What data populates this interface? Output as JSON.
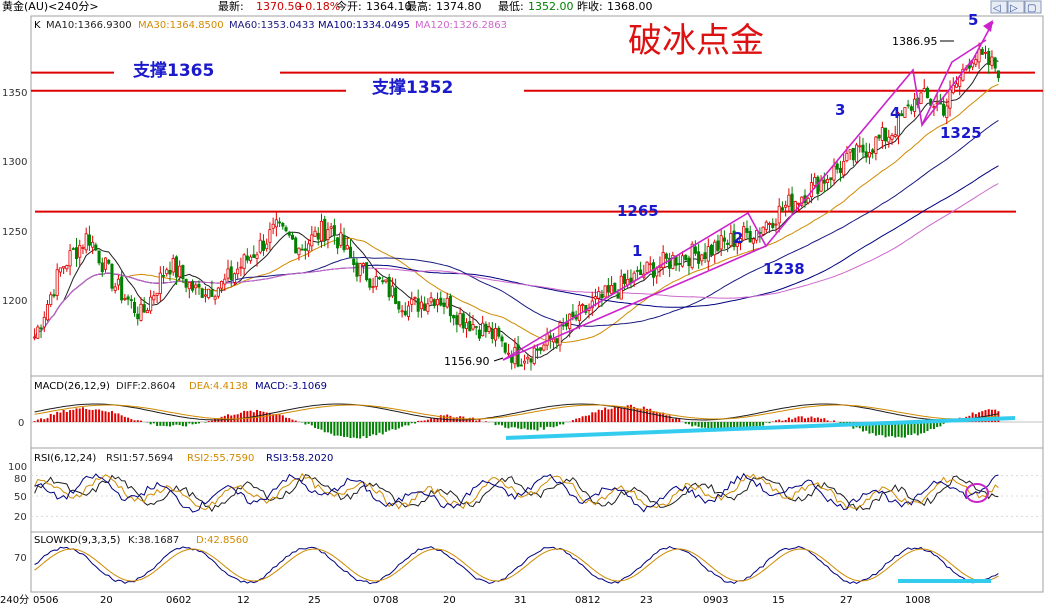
{
  "header": {
    "symbol": "黄金(AU)<240分>",
    "latest_label": "最新:",
    "latest": "1370.50",
    "change": "+0.18%",
    "open_label": "今开:",
    "open": "1364.10",
    "high_label": "最高:",
    "high": "1374.80",
    "low_label": "最低:",
    "low": "1352.00",
    "prev_label": "昨收:",
    "prev": "1368.00"
  },
  "main_legend": {
    "prefix": "K",
    "ma10": "MA10:1366.9300",
    "ma30": "MA30:1364.8500",
    "ma60": "MA60:1353.0433",
    "ma100": "MA100:1334.0495",
    "ma120": "MA120:1326.2863"
  },
  "watermark": "破冰点金",
  "annotations": {
    "support1365": "支撑1365",
    "support1352": "支撑1352",
    "l1265": "1265",
    "l1238": "1238",
    "l1325": "1325",
    "high_mark": "1386.95",
    "low_mark": "1156.90",
    "w1": "1",
    "w2": "2",
    "w3": "3",
    "w4": "4",
    "w5": "5"
  },
  "macd_legend": {
    "name": "MACD(26,12,9)",
    "diff": "DIFF:2.8604",
    "dea": "DEA:4.4138",
    "macd": "MACD:-3.1069"
  },
  "rsi_legend": {
    "name": "RSI(6,12,24)",
    "rsi1": "RSI1:57.5694",
    "rsi2": "RSI2:55.7590",
    "rsi3": "RSI3:58.2020"
  },
  "kd_legend": {
    "name": "SLOWKD(9,3,3,5)",
    "k": "K:38.1687",
    "d": "D:42.8560"
  },
  "footer": {
    "period": "240分"
  },
  "window_buttons": [
    "◁",
    "▷",
    "▢"
  ],
  "colors": {
    "up": "#e00000",
    "down": "#008000",
    "ma10": "#1f1f1f",
    "ma30": "#d08a00",
    "ma60": "#1a1a80",
    "ma100": "#000080",
    "ma120": "#cc66cc",
    "annot": "#1a1acc",
    "magenta": "#cc22cc",
    "cyan": "#33ccee",
    "red": "#dd0000"
  },
  "chart_data": [
    {
      "type": "candlestick",
      "title": "黄金(AU)<240分>",
      "ylim": [
        1150,
        1400
      ],
      "y_ticks": [
        1200,
        1250,
        1300,
        1350
      ],
      "x_tick_labels": [
        "0506",
        "20",
        "0602",
        "12",
        "25",
        "0708",
        "20",
        "31",
        "0812",
        "23",
        "0903",
        "15",
        "27",
        "1008"
      ],
      "series": [
        {
          "name": "MA10",
          "last": 1366.93
        },
        {
          "name": "MA30",
          "last": 1364.85
        },
        {
          "name": "MA60",
          "last": 1353.0433
        },
        {
          "name": "MA100",
          "last": 1334.0495
        },
        {
          "name": "MA120",
          "last": 1326.2863
        }
      ],
      "anchor_closes": [
        1175,
        1225,
        1248,
        1212,
        1190,
        1228,
        1208,
        1212,
        1232,
        1252,
        1240,
        1255,
        1225,
        1212,
        1196,
        1205,
        1188,
        1178,
        1160,
        1168,
        1185,
        1200,
        1212,
        1224,
        1232,
        1236,
        1244,
        1252,
        1268,
        1282,
        1296,
        1310,
        1322,
        1348,
        1340,
        1378,
        1368
      ],
      "key_levels": [
        1365,
        1352,
        1265
      ],
      "annotated_points": {
        "high": 1386.95,
        "low": 1156.9,
        "wave2_low": 1238,
        "wave4_low": 1325
      }
    },
    {
      "type": "bar",
      "title": "MACD(26,12,9)",
      "y_ticks": [
        0
      ],
      "series": [
        {
          "name": "DIFF",
          "last": 2.8604
        },
        {
          "name": "DEA",
          "last": 4.4138
        },
        {
          "name": "MACD",
          "last": -3.1069
        }
      ]
    },
    {
      "type": "line",
      "title": "RSI(6,12,24)",
      "ylim": [
        0,
        100
      ],
      "y_ticks": [
        20,
        50,
        80,
        100
      ],
      "series": [
        {
          "name": "RSI1",
          "last": 57.5694
        },
        {
          "name": "RSI2",
          "last": 55.759
        },
        {
          "name": "RSI3",
          "last": 58.202
        }
      ]
    },
    {
      "type": "line",
      "title": "SLOWKD(9,3,3,5)",
      "y_ticks": [
        70
      ],
      "series": [
        {
          "name": "K",
          "last": 38.1687
        },
        {
          "name": "D",
          "last": 42.856
        }
      ]
    }
  ]
}
